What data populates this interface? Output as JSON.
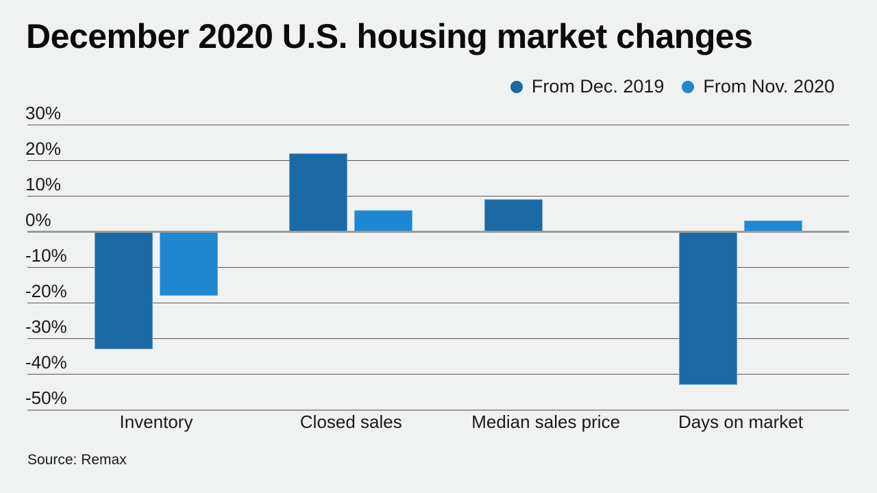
{
  "chart_data": {
    "type": "bar",
    "title": "December 2020 U.S. housing market changes",
    "source": "Source: Remax",
    "categories": [
      "Inventory",
      "Closed sales",
      "Median sales price",
      "Days on market"
    ],
    "series": [
      {
        "name": "From Dec. 2019",
        "color": "#1b6aa5",
        "values": [
          -33,
          22,
          9,
          -43
        ]
      },
      {
        "name": "From Nov. 2020",
        "color": "#1e88d2",
        "values": [
          -18,
          6,
          0,
          3
        ]
      }
    ],
    "unit": "%",
    "xlabel": "",
    "ylabel": "",
    "ylim": [
      -50,
      30
    ],
    "y_ticks": [
      "30%",
      "20%",
      "10%",
      "0%",
      "-10%",
      "-20%",
      "-30%",
      "-40%",
      "-50%"
    ],
    "grid": true,
    "legend_position": "top-right",
    "background_color": "#f0f1f1"
  }
}
